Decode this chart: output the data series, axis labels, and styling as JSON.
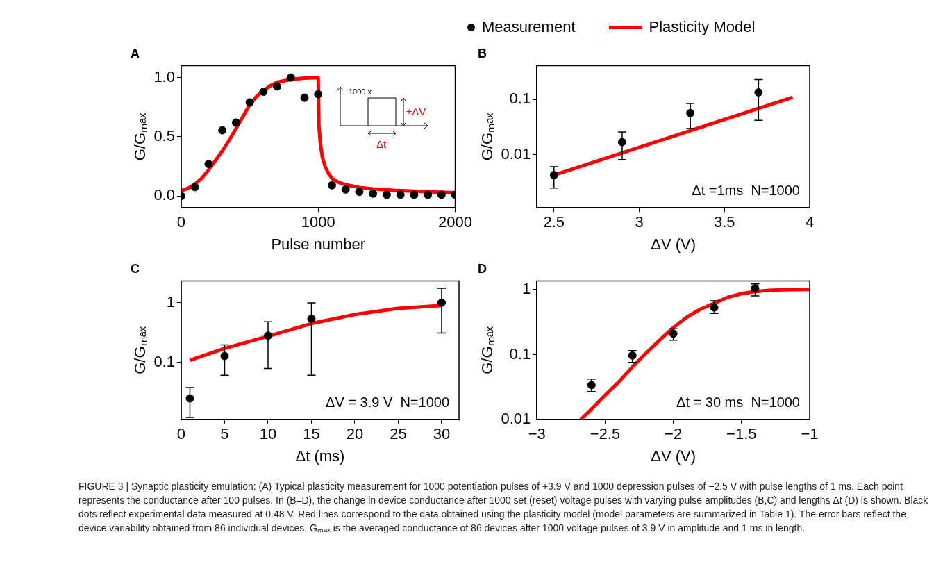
{
  "chart_data": [
    {
      "type": "scatter",
      "title": "A",
      "xlabel": "Pulse number",
      "ylabel": "G/Gₘₐₓ",
      "legend": "top right",
      "grid": false,
      "xlim": [
        0,
        2000
      ],
      "xticks": [
        0,
        1000,
        2000
      ],
      "ylim": [
        -0.1,
        1.1
      ],
      "yticks": [
        {
          "value": 0,
          "label": "0.0"
        },
        {
          "value": 0.5,
          "label": "0.5"
        },
        {
          "value": 1,
          "label": "1.0"
        }
      ],
      "annotations": [
        "1000 x",
        "±ΔV",
        "Δt"
      ],
      "series": [
        {
          "name": "Measurement",
          "type": "scatter",
          "marker": "circle",
          "color": "#000000",
          "x": [
            0,
            100,
            200,
            300,
            400,
            500,
            600,
            700,
            800,
            900,
            1000,
            1100,
            1200,
            1300,
            1400,
            1500,
            1600,
            1700,
            1800,
            1900,
            2000
          ],
          "values": [
            0,
            0.075,
            0.27,
            0.555,
            0.62,
            0.79,
            0.88,
            0.925,
            1.0,
            0.83,
            0.86,
            0.09,
            0.055,
            0.035,
            0.02,
            0.01,
            0.01,
            0.01,
            0.01,
            0.01,
            0.01
          ]
        },
        {
          "name": "Plasticity Model",
          "type": "line",
          "marker": "none",
          "color": "#ff0000",
          "x": [
            0,
            50,
            100,
            150,
            200,
            250,
            300,
            350,
            400,
            450,
            500,
            550,
            600,
            650,
            700,
            800,
            900,
            1000,
            1005,
            1015,
            1030,
            1050,
            1075,
            1100,
            1150,
            1200,
            1300,
            1400,
            1550,
            1700,
            1850,
            2000
          ],
          "values": [
            0.044,
            0.065,
            0.1,
            0.15,
            0.22,
            0.3,
            0.38,
            0.47,
            0.57,
            0.67,
            0.77,
            0.84,
            0.89,
            0.93,
            0.96,
            0.985,
            0.995,
            1.0,
            0.6,
            0.45,
            0.33,
            0.25,
            0.19,
            0.15,
            0.115,
            0.095,
            0.072,
            0.06,
            0.048,
            0.04,
            0.033,
            0.028
          ]
        }
      ]
    },
    {
      "type": "scatter",
      "title": "B",
      "xlabel": "ΔV (V)",
      "ylabel": "G/Gₘₐₓ",
      "grid": false,
      "log": "y",
      "xlim": [
        2.4,
        4
      ],
      "xticks": [
        2.5,
        3,
        3.5,
        4
      ],
      "ylim": [
        0.0011,
        0.41
      ],
      "yticks": [
        0.01,
        0.1
      ],
      "annotations": [
        "Δt =1ms  N=1000"
      ],
      "series": [
        {
          "type": "scatter",
          "marker": "circle",
          "color": "#000000",
          "x": [
            2.5,
            2.9,
            3.3,
            3.7
          ],
          "values": [
            0.0043,
            0.017,
            0.057,
            0.135
          ],
          "errors": [
            [
              0.0025,
              0.0061
            ],
            [
              0.0082,
              0.026
            ],
            [
              0.03,
              0.085
            ],
            [
              0.042,
              0.23
            ]
          ]
        },
        {
          "type": "line",
          "marker": "none",
          "color": "#ff0000",
          "x": [
            2.5,
            3.9
          ],
          "values": [
            0.0043,
            0.11
          ]
        }
      ]
    },
    {
      "type": "scatter",
      "title": "C",
      "xlabel": "Δt (ms)",
      "ylabel": "G/Gₘₐₓ",
      "grid": false,
      "log": "y",
      "xlim": [
        0,
        32
      ],
      "xticks": [
        0,
        5,
        10,
        15,
        20,
        25,
        30
      ],
      "ylim": [
        0.011,
        2.3
      ],
      "yticks": [
        0.1,
        1
      ],
      "annotations": [
        "ΔV = 3.9 V  N=1000"
      ],
      "series": [
        {
          "type": "scatter",
          "marker": "circle",
          "color": "#000000",
          "x": [
            1,
            5,
            10,
            15,
            30
          ],
          "values": [
            0.025,
            0.128,
            0.28,
            0.54,
            1.0
          ],
          "errors": [
            [
              0.012,
              0.038
            ],
            [
              0.061,
              0.196
            ],
            [
              0.079,
              0.48
            ],
            [
              0.061,
              0.99
            ],
            [
              0.31,
              1.74
            ]
          ]
        },
        {
          "type": "line",
          "marker": "none",
          "color": "#ff0000",
          "x": [
            1,
            5,
            10,
            15,
            20,
            25,
            30
          ],
          "values": [
            0.109,
            0.171,
            0.274,
            0.447,
            0.634,
            0.8,
            0.9
          ]
        }
      ]
    },
    {
      "type": "scatter",
      "title": "D",
      "xlabel": "ΔV (V)",
      "ylabel": "G/Gₘₐₓ",
      "grid": false,
      "log": "y",
      "xlim": [
        -3,
        -1
      ],
      "xticks": [
        {
          "value": -3,
          "label": "−3"
        },
        {
          "value": -2.5,
          "label": "−2.5"
        },
        {
          "value": -2,
          "label": "−2"
        },
        {
          "value": -1.5,
          "label": "−1.5"
        },
        {
          "value": -1,
          "label": "−1"
        }
      ],
      "ylim": [
        0.01,
        1.35
      ],
      "yticks": [
        0.01,
        0.1,
        1
      ],
      "annotations": [
        "Δt = 30 ms  N=1000",
        "FIGURE 3 | Synaptic plasticity emulation: (A) Typical plasticity measurement for 1000 potentiation pulses of +3.9 V and 1000 depression pulses of −2.5 V with pulse lengths of 1 ms. Each point represents the conductance after 100 pulses. In (B–D), the change in device conductance after 1000 set (reset) voltage pulses with varying pulse amplitudes (B,C) and lengths Δt (D) is shown. Black dots reflect experimental data measured at 0.48 V. Red lines correspond to the data obtained using the plasticity model (model parameters are summarized in Table 1). The error bars reflect the device variability obtained from 86 individual devices. Gₘₐₓ is the averaged conductance of 86 devices after 1000 voltage pulses of 3.9 V in amplitude and 1 ms in length."
      ],
      "series": [
        {
          "type": "scatter",
          "marker": "circle",
          "color": "#000000",
          "x": [
            -2.6,
            -2.3,
            -2.0,
            -1.7,
            -1.4
          ],
          "values": [
            0.034,
            0.097,
            0.21,
            0.53,
            1.04
          ],
          "errors": [
            [
              0.027,
              0.042
            ],
            [
              0.076,
              0.115
            ],
            [
              0.167,
              0.25
            ],
            [
              0.43,
              0.67
            ],
            [
              0.8,
              1.22
            ]
          ]
        },
        {
          "type": "line",
          "marker": "none",
          "color": "#ff0000",
          "x": [
            -2.68,
            -2.6,
            -2.5,
            -2.4,
            -2.3,
            -2.2,
            -2.1,
            -2.0,
            -1.9,
            -1.8,
            -1.7,
            -1.6,
            -1.5,
            -1.4,
            -1.3,
            -1.2,
            -1
          ],
          "values": [
            0.01,
            0.0145,
            0.0237,
            0.038,
            0.0645,
            0.105,
            0.167,
            0.26,
            0.377,
            0.5,
            0.614,
            0.76,
            0.863,
            0.93,
            0.97,
            0.99,
            1.0
          ]
        }
      ]
    }
  ]
}
